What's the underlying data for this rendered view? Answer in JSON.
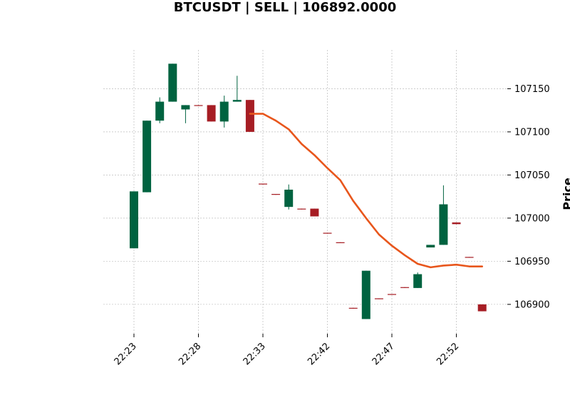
{
  "title": "BTCUSDT | SELL | 106892.0000",
  "chart_data": {
    "type": "candlestick",
    "title": "BTCUSDT | SELL | 106892.0000",
    "ylabel": "Price",
    "xlabel": "",
    "ylim": [
      106866,
      107195
    ],
    "grid": true,
    "y_ticks": [
      106900,
      106950,
      107000,
      107050,
      107100,
      107150
    ],
    "x_ticks": [
      {
        "index": 0,
        "label": "22:23"
      },
      {
        "index": 5,
        "label": "22:28"
      },
      {
        "index": 10,
        "label": "22:33"
      },
      {
        "index": 15,
        "label": "22:42"
      },
      {
        "index": 20,
        "label": "22:47"
      },
      {
        "index": 25,
        "label": "22:52"
      }
    ],
    "colors": {
      "up": "#006340",
      "down": "#a61d24",
      "ma": "#e8561c",
      "grid": "#b0b0b0"
    },
    "candles": [
      {
        "open": 106965,
        "high": 107031,
        "low": 106965,
        "close": 107031
      },
      {
        "open": 107030,
        "high": 107113,
        "low": 107030,
        "close": 107113
      },
      {
        "open": 107113,
        "high": 107140,
        "low": 107110,
        "close": 107135
      },
      {
        "open": 107135,
        "high": 107179,
        "low": 107135,
        "close": 107179
      },
      {
        "open": 107126,
        "high": 107131,
        "low": 107110,
        "close": 107131
      },
      {
        "open": 107131,
        "high": 107131,
        "low": 107130,
        "close": 107130
      },
      {
        "open": 107131,
        "high": 107131,
        "low": 107112,
        "close": 107112
      },
      {
        "open": 107112,
        "high": 107142,
        "low": 107105,
        "close": 107135
      },
      {
        "open": 107135,
        "high": 107165,
        "low": 107135,
        "close": 107137
      },
      {
        "open": 107137,
        "high": 107137,
        "low": 107100,
        "close": 107100
      },
      {
        "open": 107040,
        "high": 107040,
        "low": 107039,
        "close": 107039
      },
      {
        "open": 107028,
        "high": 107028,
        "low": 107027,
        "close": 107027
      },
      {
        "open": 107013,
        "high": 107039,
        "low": 107010,
        "close": 107033
      },
      {
        "open": 107011,
        "high": 107011,
        "low": 107010,
        "close": 107010
      },
      {
        "open": 107011,
        "high": 107011,
        "low": 107002,
        "close": 107002
      },
      {
        "open": 106983,
        "high": 106983,
        "low": 106982,
        "close": 106982
      },
      {
        "open": 106972,
        "high": 106972,
        "low": 106971,
        "close": 106971
      },
      {
        "open": 106896,
        "high": 106896,
        "low": 106895,
        "close": 106895
      },
      {
        "open": 106883,
        "high": 106939,
        "low": 106883,
        "close": 106939
      },
      {
        "open": 106907,
        "high": 106907,
        "low": 106906,
        "close": 106906
      },
      {
        "open": 106912,
        "high": 106912,
        "low": 106911,
        "close": 106911
      },
      {
        "open": 106920,
        "high": 106920,
        "low": 106919,
        "close": 106919
      },
      {
        "open": 106919,
        "high": 106937,
        "low": 106919,
        "close": 106935
      },
      {
        "open": 106966,
        "high": 106969,
        "low": 106966,
        "close": 106969
      },
      {
        "open": 106969,
        "high": 107038,
        "low": 106969,
        "close": 107016
      },
      {
        "open": 106995,
        "high": 106995,
        "low": 106993,
        "close": 106993
      },
      {
        "open": 106955,
        "high": 106955,
        "low": 106954,
        "close": 106954
      },
      {
        "open": 106900,
        "high": 106900,
        "low": 106892,
        "close": 106892
      }
    ],
    "ma_start_index": 9,
    "ma": [
      107121,
      107121,
      107113,
      107103,
      107086,
      107073,
      107058,
      107044,
      107020,
      107000,
      106981,
      106968,
      106957,
      106947,
      106943,
      106945,
      106946,
      106944,
      106944
    ]
  }
}
